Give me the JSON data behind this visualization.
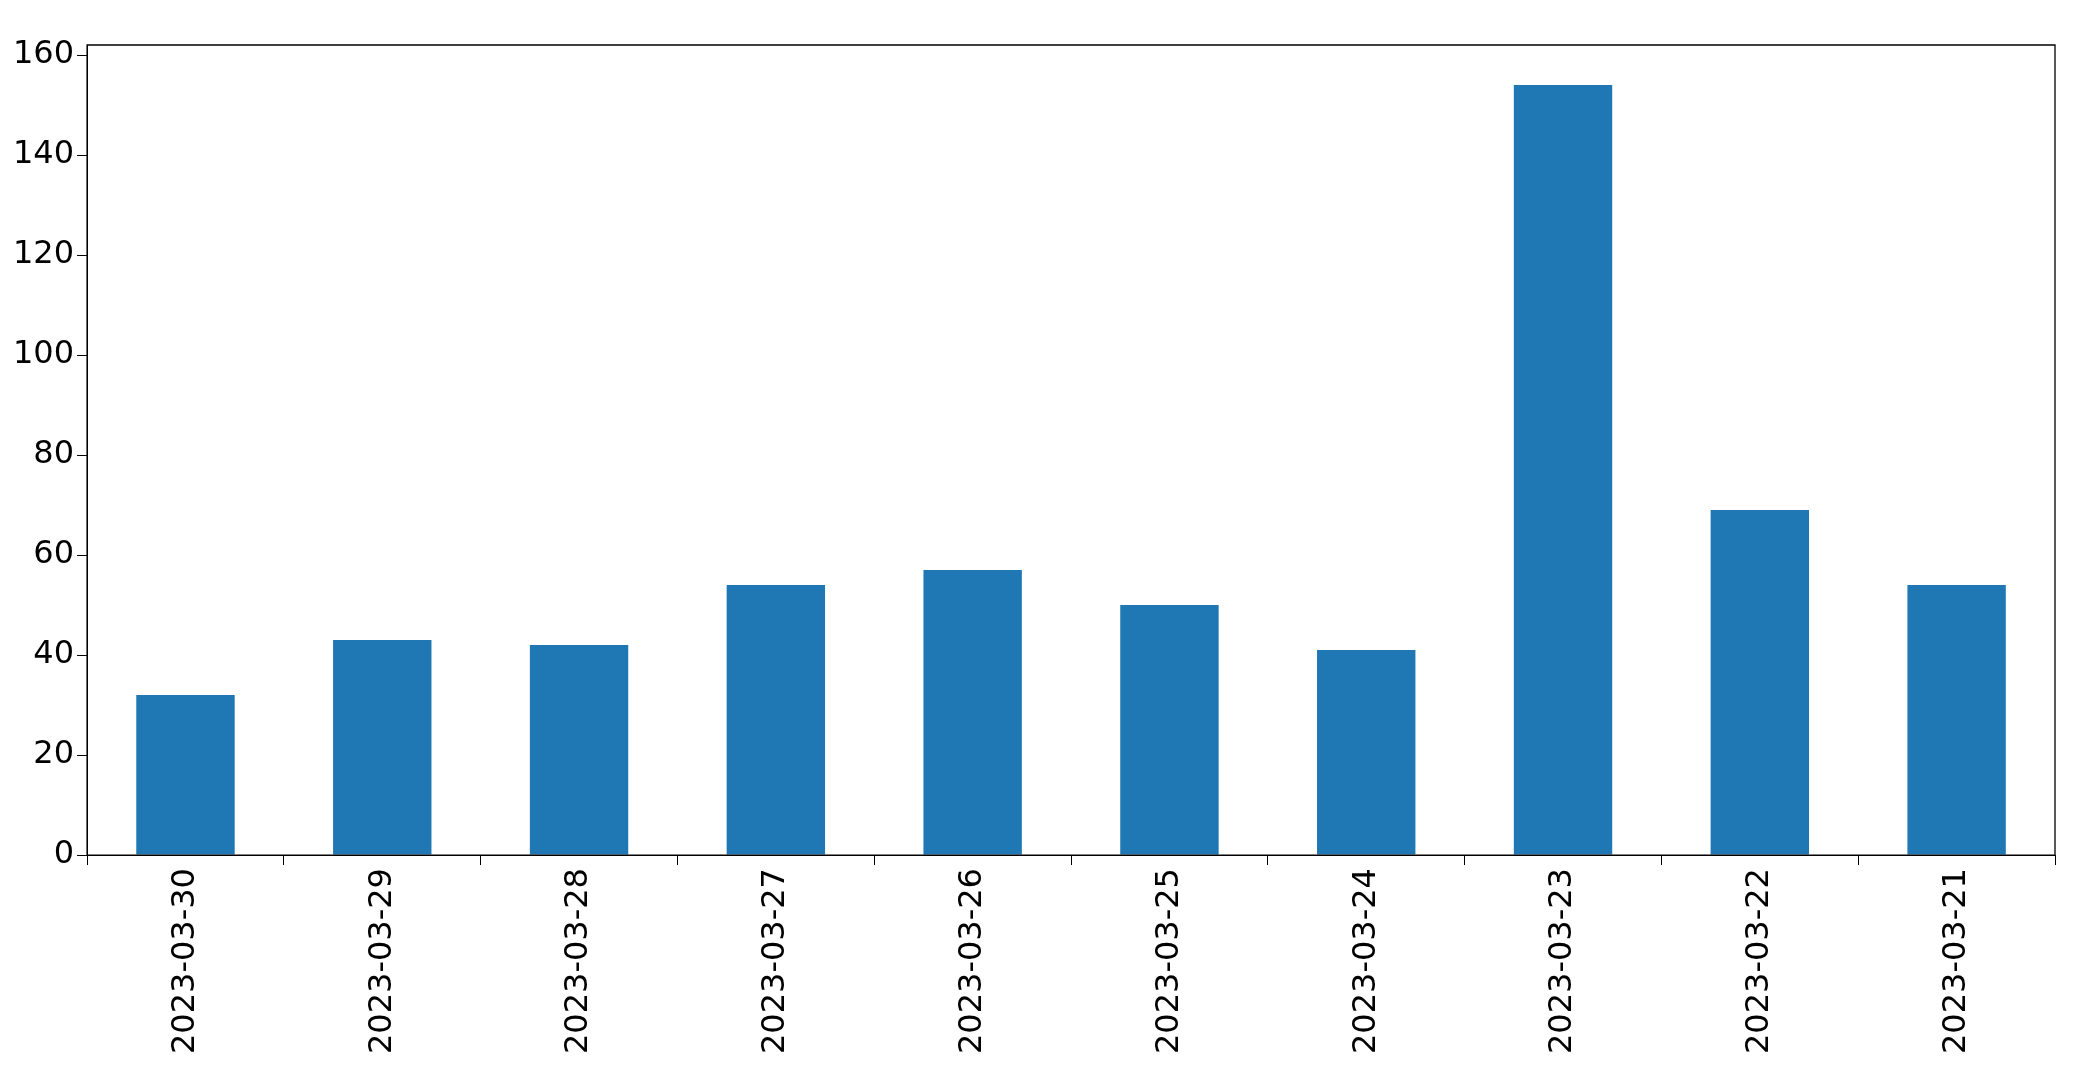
{
  "chart_data": {
    "type": "bar",
    "categories": [
      "2023-03-30",
      "2023-03-29",
      "2023-03-28",
      "2023-03-27",
      "2023-03-26",
      "2023-03-25",
      "2023-03-24",
      "2023-03-23",
      "2023-03-22",
      "2023-03-21"
    ],
    "values": [
      32,
      43,
      42,
      54,
      57,
      50,
      41,
      154,
      69,
      54
    ],
    "color": "#1f77b4",
    "ylim": [
      0,
      162
    ],
    "yticks": [
      0,
      20,
      40,
      60,
      80,
      100,
      120,
      140,
      160
    ],
    "grid": false,
    "legend": false
  }
}
